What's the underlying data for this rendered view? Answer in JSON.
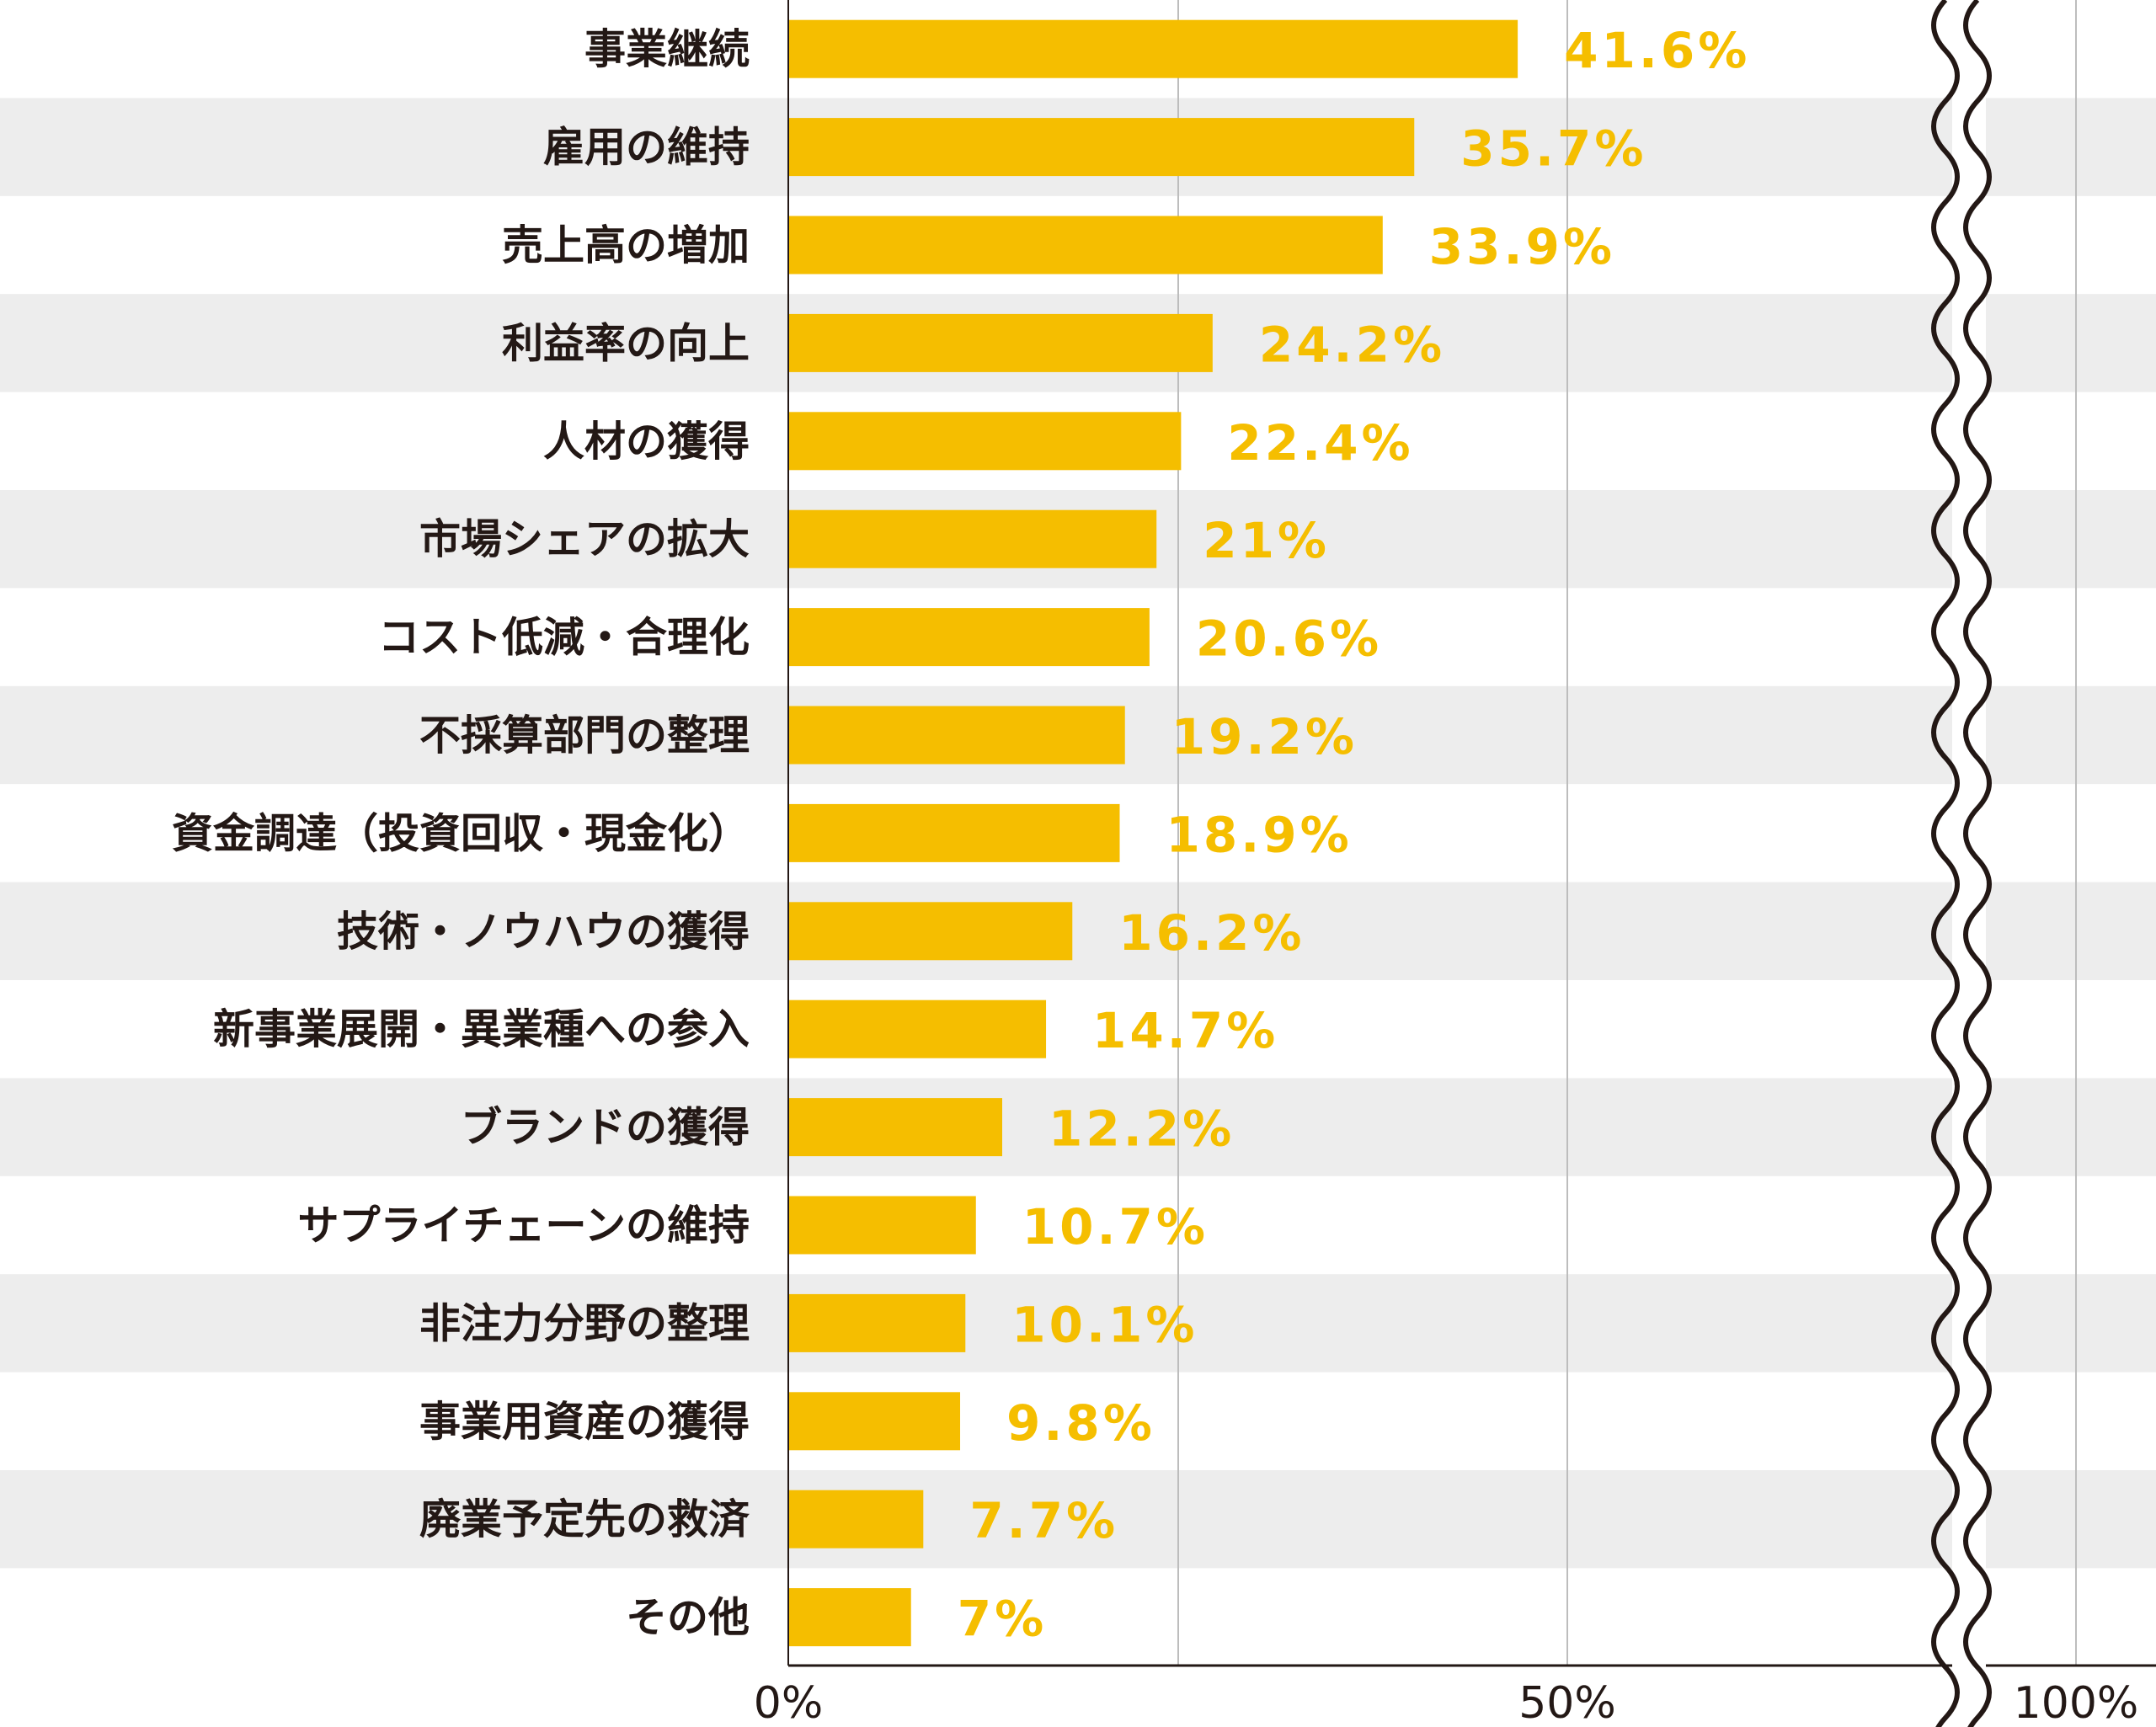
{
  "chart_data": {
    "type": "bar",
    "orientation": "horizontal",
    "categories": [
      "事業継続",
      "雇用の維持",
      "売上高の増加",
      "利益率の向上",
      "人材の獲得",
      "市場シェアの拡大",
      "コスト低減・合理化",
      "不採算部門の整理",
      "資金調達（投資回収・現金化）",
      "技術・ノウハウの獲得",
      "新事業展開・異業種への参入",
      "ブランドの獲得",
      "サプライチェーンの維持",
      "非注力分野の整理",
      "事業用資産の獲得",
      "廃業予定先の救済",
      "その他"
    ],
    "values": [
      41.6,
      35.7,
      33.9,
      24.2,
      22.4,
      21,
      20.6,
      19.2,
      18.9,
      16.2,
      14.7,
      12.2,
      10.7,
      10.1,
      9.8,
      7.7,
      7
    ],
    "value_labels": [
      "41.6%",
      "35.7%",
      "33.9%",
      "24.2%",
      "22.4%",
      "21%",
      "20.6%",
      "19.2%",
      "18.9%",
      "16.2%",
      "14.7%",
      "12.2%",
      "10.7%",
      "10.1%",
      "9.8%",
      "7.7%",
      "7%"
    ],
    "x_ticks": [
      "0%",
      "50%",
      "100%"
    ],
    "xlim": [
      0,
      100
    ],
    "axis_break": true,
    "grid": true,
    "colors": {
      "bar": "#F5BE00",
      "label": "#F5BE00",
      "stripe": "#EDEDED",
      "text": "#231815"
    }
  }
}
